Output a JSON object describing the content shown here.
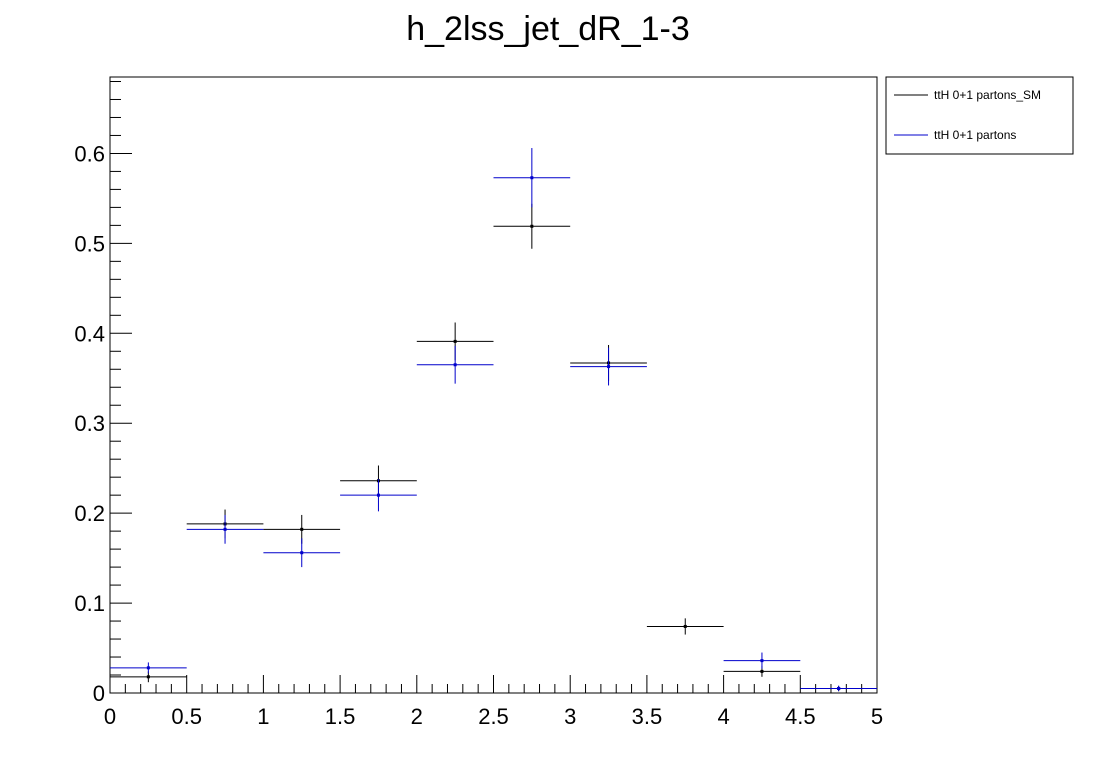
{
  "chart_data": {
    "type": "scatter",
    "title": "h_2lss_jet_dR_1-3",
    "xlabel": "",
    "ylabel": "",
    "xlim": [
      0,
      5
    ],
    "ylim": [
      0,
      0.685
    ],
    "x_ticks": [
      "0",
      "0.5",
      "1",
      "1.5",
      "2",
      "2.5",
      "3",
      "3.5",
      "4",
      "4.5",
      "5"
    ],
    "y_ticks": [
      "0",
      "0.1",
      "0.2",
      "0.3",
      "0.4",
      "0.5",
      "0.6"
    ],
    "grid": false,
    "legend_position": "top-right",
    "bin_edges": [
      0,
      0.5,
      1,
      1.5,
      2,
      2.5,
      3,
      3.5,
      4,
      4.5,
      5
    ],
    "series": [
      {
        "name": "ttH 0+1 partons_SM",
        "color": "#000000",
        "values": [
          0.018,
          0.188,
          0.182,
          0.236,
          0.391,
          0.519,
          0.367,
          0.074,
          0.024,
          0.005
        ],
        "errors": [
          0.006,
          0.016,
          0.016,
          0.017,
          0.021,
          0.025,
          0.02,
          0.009,
          0.006,
          0.003
        ]
      },
      {
        "name": "ttH 0+1 partons",
        "color": "#0000cc",
        "values": [
          0.028,
          0.182,
          0.156,
          0.22,
          0.365,
          0.573,
          0.363,
          0.0,
          0.036,
          0.005
        ],
        "errors": [
          0.006,
          0.016,
          0.016,
          0.018,
          0.021,
          0.033,
          0.021,
          0.0,
          0.009,
          0.003
        ]
      }
    ]
  }
}
